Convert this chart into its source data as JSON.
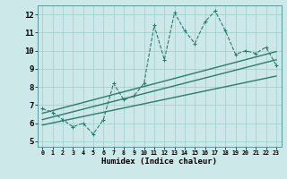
{
  "xlabel": "Humidex (Indice chaleur)",
  "ylabel": "",
  "xlim": [
    -0.5,
    23.5
  ],
  "ylim": [
    4.7,
    12.5
  ],
  "xticks": [
    0,
    1,
    2,
    3,
    4,
    5,
    6,
    7,
    8,
    9,
    10,
    11,
    12,
    13,
    14,
    15,
    16,
    17,
    18,
    19,
    20,
    21,
    22,
    23
  ],
  "yticks": [
    5,
    6,
    7,
    8,
    9,
    10,
    11,
    12
  ],
  "main_x": [
    0,
    1,
    2,
    3,
    4,
    5,
    6,
    7,
    8,
    9,
    10,
    11,
    12,
    13,
    14,
    15,
    16,
    17,
    18,
    19,
    20,
    21,
    22,
    23
  ],
  "main_y": [
    6.8,
    6.6,
    6.2,
    5.8,
    6.0,
    5.4,
    6.2,
    8.2,
    7.3,
    7.5,
    8.2,
    11.4,
    9.5,
    12.1,
    11.1,
    10.4,
    11.6,
    12.2,
    11.1,
    9.8,
    10.0,
    9.85,
    10.2,
    9.2
  ],
  "line1_x": [
    0,
    23
  ],
  "line1_y": [
    6.55,
    9.95
  ],
  "line2_x": [
    0,
    23
  ],
  "line2_y": [
    6.2,
    9.5
  ],
  "line3_x": [
    0,
    23
  ],
  "line3_y": [
    5.9,
    8.6
  ],
  "color": "#2a7d6a",
  "bg_color": "#cce8e8",
  "grid_color": "#9ecece",
  "label_fontsize": 6.5,
  "tick_fontsize": 6.5
}
